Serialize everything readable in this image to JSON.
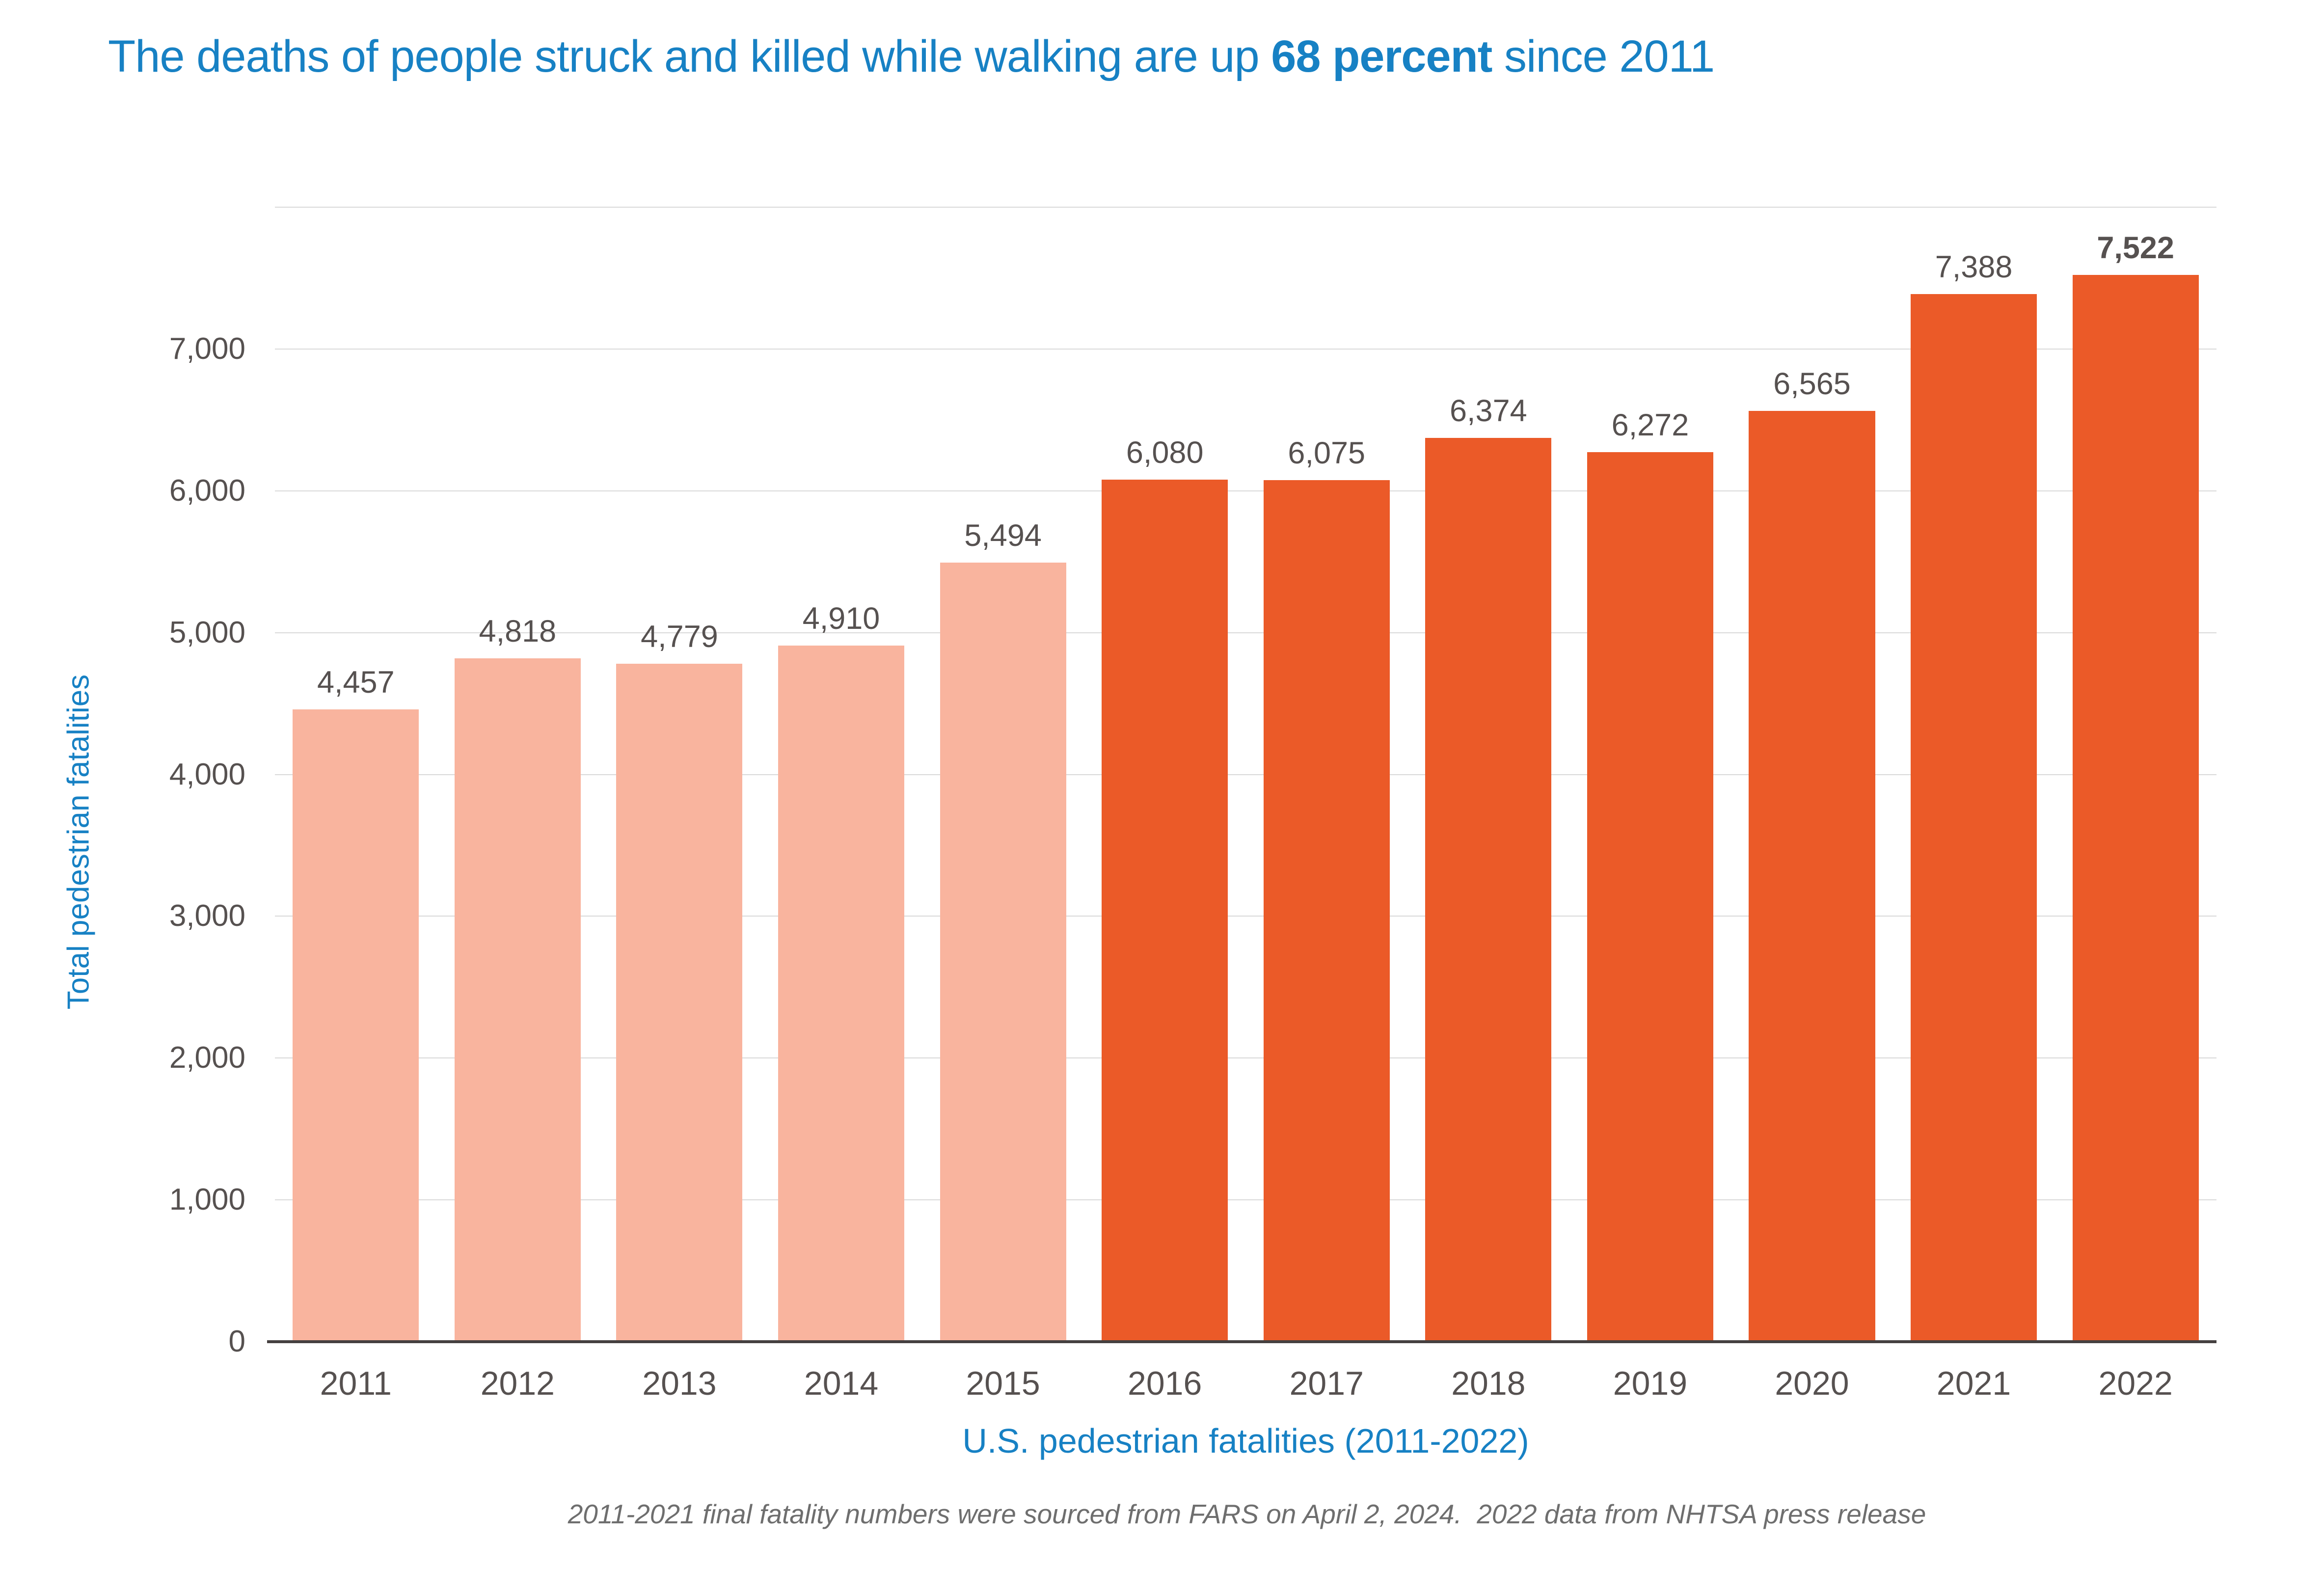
{
  "title": {
    "prefix": "The deaths of people struck and killed while walking are up ",
    "bold": "68 percent",
    "suffix": " since 2011"
  },
  "colors": {
    "title_blue": "#1781C4",
    "bar_light": "#F9B49E",
    "bar_dark": "#EB5A28",
    "text_gray": "#565150",
    "grid_gray": "#D9D9D9",
    "axis_gray": "#454040",
    "footnote_gray": "#6E6E6E"
  },
  "chart_data": {
    "type": "bar",
    "title": "The deaths of people struck and killed while walking are up 68 percent since 2011",
    "categories": [
      "2011",
      "2012",
      "2013",
      "2014",
      "2015",
      "2016",
      "2017",
      "2018",
      "2019",
      "2020",
      "2021",
      "2022"
    ],
    "values": [
      4457,
      4818,
      4779,
      4910,
      5494,
      6080,
      6075,
      6374,
      6272,
      6565,
      7388,
      7522
    ],
    "value_labels": [
      "4,457",
      "4,818",
      "4,779",
      "4,910",
      "5,494",
      "6,080",
      "6,075",
      "6,374",
      "6,272",
      "6,565",
      "7,388",
      "7,522"
    ],
    "emphasized_label_index": 11,
    "light_bar_count": 5,
    "xlabel": "U.S. pedestrian fatalities (2011-2022)",
    "ylabel": "Total pedestrian fatalities",
    "ylim": [
      0,
      8000
    ],
    "yticks": [
      {
        "value": 0,
        "label": "0"
      },
      {
        "value": 1000,
        "label": "1,000"
      },
      {
        "value": 2000,
        "label": "2,000"
      },
      {
        "value": 3000,
        "label": "3,000"
      },
      {
        "value": 4000,
        "label": "4,000"
      },
      {
        "value": 5000,
        "label": "5,000"
      },
      {
        "value": 6000,
        "label": "6,000"
      },
      {
        "value": 7000,
        "label": "7,000"
      }
    ],
    "ygridlines": [
      1000,
      2000,
      3000,
      4000,
      5000,
      6000,
      7000,
      8000
    ],
    "grid": "horizontal",
    "legend": "none",
    "footnote": "2011-2021 final fatality numbers were sourced from FARS on April 2, 2024.  2022 data from NHTSA press release"
  }
}
